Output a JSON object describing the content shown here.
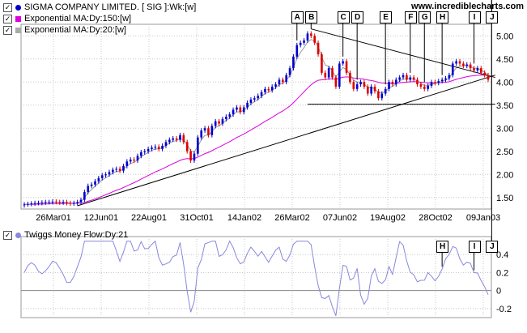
{
  "site": "www.incrediblecharts.com",
  "legend_top": [
    {
      "label": "SIGMA COMPANY LIMITED. [ SIG ]:Wk:[w]",
      "color": "#0000cc",
      "marker": "dot"
    },
    {
      "label": "Exponential MA:Dy:150:[w]",
      "color": "#dd00dd",
      "marker": "sq"
    },
    {
      "label": "Exponential MA:Dy:20:[w]",
      "color": "#aaaaaa",
      "marker": "sq"
    }
  ],
  "legend_bottom": {
    "label": "Twiggs Money Flow:Dy:21",
    "color": "#8888dd"
  },
  "colors": {
    "up": "#0000cc",
    "down": "#dd0000",
    "ma150": "#dd00dd",
    "ma20": "#999999",
    "tmf": "#8888dd",
    "grid": "#c8c8c8",
    "trend": "#000000"
  },
  "chart_data": [
    {
      "type": "candlestick",
      "title": "SIGMA COMPANY LIMITED. [ SIG ]:Wk:[w]",
      "x_tick_labels": [
        "26Mar01",
        "12Jun01",
        "22Aug01",
        "31Oct01",
        "14Jan02",
        "26Mar02",
        "07Jun02",
        "19Aug02",
        "28Oct02",
        "09Jan03"
      ],
      "y_ticks": [
        1.5,
        2.0,
        2.5,
        3.0,
        3.5,
        4.0,
        4.5,
        5.0
      ],
      "y_tick_labels": [
        "1.50",
        "2.00",
        "2.50",
        "3.00",
        "3.50",
        "4.00",
        "4.50",
        "5.00"
      ],
      "ylim": [
        1.25,
        5.25
      ],
      "grid": true,
      "series_close": [
        1.35,
        1.36,
        1.37,
        1.38,
        1.38,
        1.39,
        1.4,
        1.4,
        1.41,
        1.4,
        1.39,
        1.4,
        1.38,
        1.37,
        1.38,
        1.4,
        1.45,
        1.62,
        1.75,
        1.78,
        1.85,
        1.92,
        1.98,
        2.0,
        2.05,
        2.1,
        2.12,
        2.08,
        2.18,
        2.28,
        2.32,
        2.3,
        2.4,
        2.48,
        2.5,
        2.55,
        2.58,
        2.6,
        2.55,
        2.62,
        2.7,
        2.75,
        2.78,
        2.75,
        2.85,
        2.7,
        2.5,
        2.3,
        2.45,
        2.8,
        2.95,
        3.0,
        2.85,
        3.05,
        3.15,
        3.1,
        3.2,
        3.25,
        3.3,
        3.4,
        3.45,
        3.35,
        3.45,
        3.55,
        3.62,
        3.65,
        3.7,
        3.78,
        3.85,
        3.82,
        3.9,
        3.95,
        4.05,
        4.0,
        4.15,
        4.3,
        4.55,
        4.8,
        4.85,
        4.9,
        5.05,
        5.0,
        4.85,
        4.6,
        4.2,
        4.1,
        4.3,
        4.1,
        3.9,
        4.4,
        4.45,
        4.2,
        4.0,
        3.85,
        3.95,
        4.0,
        3.9,
        3.75,
        3.9,
        3.8,
        3.65,
        3.75,
        3.85,
        4.0,
        3.95,
        4.05,
        4.1,
        4.15,
        4.05,
        4.1,
        4.05,
        3.95,
        3.9,
        3.85,
        3.92,
        4.0,
        3.98,
        4.02,
        4.05,
        4.08,
        4.15,
        4.4,
        4.45,
        4.4,
        4.35,
        4.38,
        4.3,
        4.25,
        4.3,
        4.2,
        4.15,
        4.05
      ],
      "series_open": [
        1.33,
        1.35,
        1.36,
        1.37,
        1.38,
        1.38,
        1.39,
        1.4,
        1.4,
        1.41,
        1.4,
        1.39,
        1.4,
        1.38,
        1.37,
        1.38,
        1.4,
        1.45,
        1.62,
        1.75,
        1.78,
        1.85,
        1.92,
        1.98,
        2.0,
        2.05,
        2.1,
        2.12,
        2.08,
        2.18,
        2.28,
        2.32,
        2.3,
        2.4,
        2.48,
        2.5,
        2.55,
        2.58,
        2.6,
        2.55,
        2.62,
        2.7,
        2.75,
        2.78,
        2.75,
        2.85,
        2.7,
        2.5,
        2.3,
        2.45,
        2.8,
        2.95,
        3.0,
        2.85,
        3.05,
        3.15,
        3.1,
        3.2,
        3.25,
        3.3,
        3.4,
        3.45,
        3.35,
        3.45,
        3.55,
        3.62,
        3.65,
        3.7,
        3.78,
        3.85,
        3.82,
        3.9,
        3.95,
        4.05,
        4.0,
        4.15,
        4.3,
        4.55,
        4.8,
        4.85,
        4.9,
        5.05,
        5.0,
        4.85,
        4.6,
        4.2,
        4.1,
        4.3,
        4.1,
        3.9,
        4.4,
        4.45,
        4.2,
        4.0,
        3.85,
        3.95,
        4.0,
        3.9,
        3.75,
        3.9,
        3.8,
        3.65,
        3.75,
        3.85,
        4.0,
        3.95,
        4.05,
        4.1,
        4.15,
        4.05,
        4.1,
        4.05,
        3.95,
        3.9,
        3.85,
        3.92,
        4.0,
        3.98,
        4.02,
        4.05,
        4.08,
        4.15,
        4.4,
        4.45,
        4.4,
        4.35,
        4.38,
        4.3,
        4.25,
        4.3,
        4.2,
        4.15
      ],
      "annotations": [
        "A",
        "B",
        "C",
        "D",
        "E",
        "F",
        "G",
        "H",
        "I",
        "J"
      ],
      "annotation_x_index": [
        77,
        81,
        90,
        94,
        102,
        109,
        113,
        118,
        127,
        132
      ]
    },
    {
      "type": "line",
      "title": "Twiggs Money Flow:Dy:21",
      "y_ticks": [
        0.4,
        0.2,
        0,
        -0.2
      ],
      "y_tick_labels": [
        "0.4",
        "0.2",
        "0",
        "-0.2"
      ],
      "ylim": [
        -0.3,
        0.6
      ],
      "annotations": [
        "H",
        "I",
        "J"
      ],
      "annotation_x_index": [
        118,
        127,
        132
      ]
    }
  ]
}
